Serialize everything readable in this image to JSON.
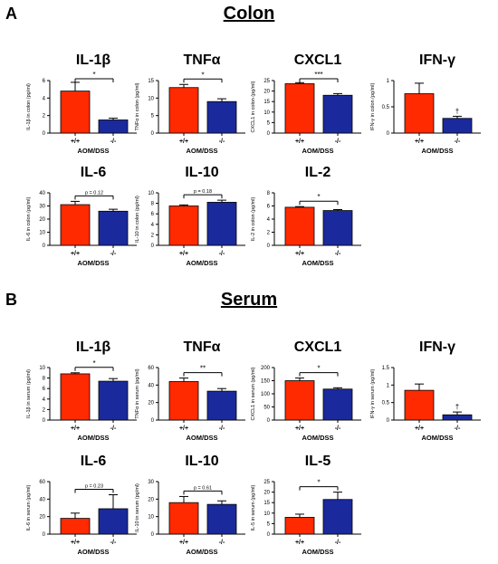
{
  "figure": {
    "panels": [
      {
        "letter": "A",
        "title": "Colon"
      },
      {
        "letter": "B",
        "title": "Serum"
      }
    ],
    "colors": {
      "wildtype": "#ff2a00",
      "knockout": "#1a2a9c",
      "axis": "#000000"
    }
  },
  "chart_data": [
    {
      "panel": "A",
      "type": "bar",
      "title": "IL-1β",
      "ylabel": "IL-1β in colon (pg/ml)",
      "categories": [
        "+/+",
        "-/-"
      ],
      "values": [
        4.8,
        1.5
      ],
      "errors": [
        1.0,
        0.2
      ],
      "ylim": [
        0,
        6
      ],
      "yticks": [
        0,
        2,
        4,
        6
      ],
      "xlabel": "AOM/DSS",
      "annotation": "*"
    },
    {
      "panel": "A",
      "type": "bar",
      "title": "TNFα",
      "ylabel": "TNFα in colon (pg/ml)",
      "categories": [
        "+/+",
        "-/-"
      ],
      "values": [
        13,
        9
      ],
      "errors": [
        0.9,
        0.8
      ],
      "ylim": [
        0,
        15
      ],
      "yticks": [
        0,
        5,
        10,
        15
      ],
      "xlabel": "AOM/DSS",
      "annotation": "*"
    },
    {
      "panel": "A",
      "type": "bar",
      "title": "CXCL1",
      "ylabel": "CXCL1 in colon (pg/ml)",
      "categories": [
        "+/+",
        "-/-"
      ],
      "values": [
        23.5,
        18
      ],
      "errors": [
        0.5,
        0.8
      ],
      "ylim": [
        0,
        25
      ],
      "yticks": [
        0,
        5,
        10,
        15,
        20,
        25
      ],
      "xlabel": "AOM/DSS",
      "annotation": "***"
    },
    {
      "panel": "A",
      "type": "bar",
      "title": "IFN-γ",
      "ylabel": "IFN-γ in colon (pg/ml)",
      "categories": [
        "+/+",
        "-/-"
      ],
      "values": [
        0.75,
        0.28
      ],
      "errors": [
        0.2,
        0.04
      ],
      "ylim": [
        0,
        1.0
      ],
      "yticks": [
        0,
        0.5,
        1.0
      ],
      "xlabel": "AOM/DSS",
      "annotation": "†"
    },
    {
      "panel": "A",
      "type": "bar",
      "title": "IL-6",
      "ylabel": "IL-6 in colon (pg/ml)",
      "categories": [
        "+/+",
        "-/-"
      ],
      "values": [
        31,
        26
      ],
      "errors": [
        2.5,
        1.5
      ],
      "ylim": [
        0,
        40
      ],
      "yticks": [
        0,
        10,
        20,
        30,
        40
      ],
      "xlabel": "AOM/DSS",
      "annotation": "p = 0.12"
    },
    {
      "panel": "A",
      "type": "bar",
      "title": "IL-10",
      "ylabel": "IL-10 in colon (pg/ml)",
      "categories": [
        "+/+",
        "-/-"
      ],
      "values": [
        7.5,
        8.2
      ],
      "errors": [
        0.2,
        0.4
      ],
      "ylim": [
        0,
        10
      ],
      "yticks": [
        0,
        2,
        4,
        6,
        8,
        10
      ],
      "xlabel": "AOM/DSS",
      "annotation": "p = 0.18"
    },
    {
      "panel": "A",
      "type": "bar",
      "title": "IL-2",
      "ylabel": "IL-2 in colon (pg/ml)",
      "categories": [
        "+/+",
        "-/-"
      ],
      "values": [
        5.8,
        5.3
      ],
      "errors": [
        0.1,
        0.15
      ],
      "ylim": [
        0,
        8
      ],
      "yticks": [
        0,
        2,
        4,
        6,
        8
      ],
      "xlabel": "AOM/DSS",
      "annotation": "*"
    },
    {
      "panel": "B",
      "type": "bar",
      "title": "IL-1β",
      "ylabel": "IL-1β in serum (pg/ml)",
      "categories": [
        "+/+",
        "-/-"
      ],
      "values": [
        8.8,
        7.4
      ],
      "errors": [
        0.2,
        0.5
      ],
      "ylim": [
        0,
        10
      ],
      "yticks": [
        0,
        2,
        4,
        6,
        8,
        10
      ],
      "xlabel": "AOM/DSS",
      "annotation": "*"
    },
    {
      "panel": "B",
      "type": "bar",
      "title": "TNFα",
      "ylabel": "TNFα in serum (pg/ml)",
      "categories": [
        "+/+",
        "-/-"
      ],
      "values": [
        44,
        33
      ],
      "errors": [
        4,
        3
      ],
      "ylim": [
        0,
        60
      ],
      "yticks": [
        0,
        20,
        40,
        60
      ],
      "xlabel": "AOM/DSS",
      "annotation": "**"
    },
    {
      "panel": "B",
      "type": "bar",
      "title": "CXCL1",
      "ylabel": "CXCL1 in serum (pg/ml)",
      "categories": [
        "+/+",
        "-/-"
      ],
      "values": [
        150,
        118
      ],
      "errors": [
        10,
        5
      ],
      "ylim": [
        0,
        200
      ],
      "yticks": [
        0,
        50,
        100,
        150,
        200
      ],
      "xlabel": "AOM/DSS",
      "annotation": "*"
    },
    {
      "panel": "B",
      "type": "bar",
      "title": "IFN-γ",
      "ylabel": "IFN-γ in serum (pg/ml)",
      "categories": [
        "+/+",
        "-/-"
      ],
      "values": [
        0.85,
        0.15
      ],
      "errors": [
        0.18,
        0.08
      ],
      "ylim": [
        0,
        1.5
      ],
      "yticks": [
        0,
        0.5,
        1.0,
        1.5
      ],
      "xlabel": "AOM/DSS",
      "annotation": "†"
    },
    {
      "panel": "B",
      "type": "bar",
      "title": "IL-6",
      "ylabel": "IL-6 in serum (pg/ml)",
      "categories": [
        "+/+",
        "-/-"
      ],
      "values": [
        18,
        29
      ],
      "errors": [
        6,
        16
      ],
      "ylim": [
        0,
        60
      ],
      "yticks": [
        0,
        20,
        40,
        60
      ],
      "xlabel": "AOM/DSS",
      "annotation": "p = 0.23"
    },
    {
      "panel": "B",
      "type": "bar",
      "title": "IL-10",
      "ylabel": "IL-10 in serum (pg/ml)",
      "categories": [
        "+/+",
        "-/-"
      ],
      "values": [
        18,
        17
      ],
      "errors": [
        3.5,
        2
      ],
      "ylim": [
        0,
        30
      ],
      "yticks": [
        0,
        10,
        20,
        30
      ],
      "xlabel": "AOM/DSS",
      "annotation": "p = 0.61"
    },
    {
      "panel": "B",
      "type": "bar",
      "title": "IL-5",
      "ylabel": "IL-5 in serum (pg/ml)",
      "categories": [
        "+/+",
        "-/-"
      ],
      "values": [
        8,
        16.5
      ],
      "errors": [
        1.5,
        3.5
      ],
      "ylim": [
        0,
        25
      ],
      "yticks": [
        0,
        5,
        10,
        15,
        20,
        25
      ],
      "xlabel": "AOM/DSS",
      "annotation": "*"
    }
  ]
}
